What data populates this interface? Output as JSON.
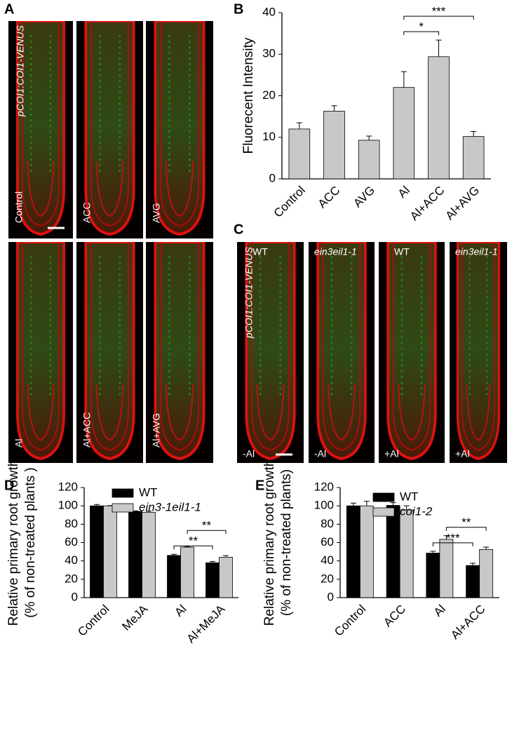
{
  "panels": [
    "A",
    "B",
    "C",
    "D",
    "E"
  ],
  "images": {
    "a_label": "pCOI1:COI1-VENUS",
    "a_panels": [
      "Control",
      "ACC",
      "AVG",
      "Al",
      "Al+ACC",
      "Al+AVG"
    ],
    "c_label": "pCOI1:COI1-VENUS",
    "c_top": [
      "WT",
      "ein3eil1-1",
      "WT",
      "ein3eil1-1"
    ],
    "c_bottom": [
      "-Al",
      "-Al",
      "+Al",
      "+Al"
    ]
  },
  "chart_data": [
    {
      "type": "bar",
      "ylabel": [
        "Fluorecent Intensity"
      ],
      "categories": [
        "Control",
        "ACC",
        "AVG",
        "Al",
        "Al+ACC",
        "Al+AVG"
      ],
      "values": [
        12,
        16.3,
        9.3,
        22,
        29.4,
        10.2
      ],
      "errors": [
        1.5,
        1.3,
        1,
        3.8,
        4,
        1.2
      ],
      "color": "#c8c8c8",
      "ylim": [
        0,
        40
      ],
      "yticks": [
        0,
        10,
        20,
        30,
        40
      ],
      "annotations": [
        {
          "text": "*",
          "between": [
            3,
            4
          ]
        },
        {
          "text": "***",
          "between": [
            3,
            5
          ]
        }
      ]
    },
    {
      "type": "grouped-bar",
      "ylabel": [
        "Relative primary root growth",
        "(% of non-treated plants )"
      ],
      "categories": [
        "Control",
        "MeJA",
        "Al",
        "Al+MeJA"
      ],
      "series": [
        {
          "name": "WT",
          "color": "#000000",
          "style": "normal",
          "values": [
            100,
            94,
            46,
            38
          ],
          "errors": [
            1.5,
            0.5,
            1.2,
            1.5
          ]
        },
        {
          "name": "ein3-1eil1-1",
          "color": "#c8c8c8",
          "style": "italic",
          "values": [
            100,
            93,
            55,
            44
          ],
          "errors": [
            0.3,
            1.2,
            0.5,
            1.8
          ]
        }
      ],
      "ylim": [
        0,
        120
      ],
      "yticks": [
        0,
        20,
        40,
        60,
        80,
        100,
        120
      ],
      "annotations": [
        {
          "text": "**",
          "between": [
            [
              2,
              0
            ],
            [
              3,
              0
            ]
          ]
        },
        {
          "text": "**",
          "between": [
            [
              2,
              1
            ],
            [
              3,
              1
            ]
          ]
        }
      ]
    },
    {
      "type": "grouped-bar",
      "ylabel": [
        "Relative primary root growth",
        "(% of non-treated plants)"
      ],
      "categories": [
        "Control",
        "ACC",
        "Al",
        "Al+ACC"
      ],
      "series": [
        {
          "name": "WT",
          "color": "#000000",
          "style": "normal",
          "values": [
            100,
            100.5,
            48.5,
            35
          ],
          "errors": [
            3,
            3,
            2,
            2.5
          ]
        },
        {
          "name": "coi1-2",
          "color": "#c8c8c8",
          "style": "italic",
          "values": [
            100,
            95.5,
            63.5,
            52.5
          ],
          "errors": [
            5,
            4.5,
            4,
            2.5
          ]
        }
      ],
      "ylim": [
        0,
        120
      ],
      "yticks": [
        0,
        20,
        40,
        60,
        80,
        100,
        120
      ],
      "annotations": [
        {
          "text": "***",
          "between": [
            [
              2,
              0
            ],
            [
              3,
              0
            ]
          ]
        },
        {
          "text": "**",
          "between": [
            [
              2,
              1
            ],
            [
              3,
              1
            ]
          ]
        }
      ]
    }
  ]
}
